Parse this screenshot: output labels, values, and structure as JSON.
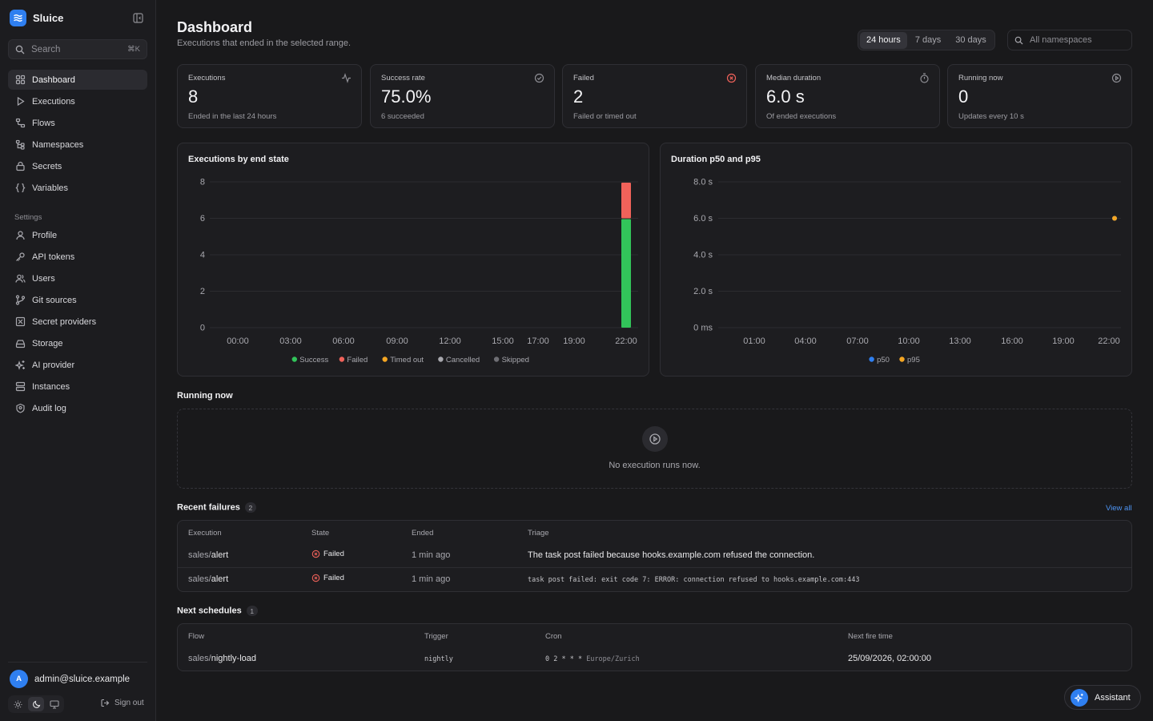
{
  "app": {
    "name": "Sluice"
  },
  "search": {
    "placeholder": "Search",
    "shortcut": "⌘K"
  },
  "nav": [
    {
      "label": "Dashboard",
      "icon": "grid-icon",
      "active": true
    },
    {
      "label": "Executions",
      "icon": "play-icon"
    },
    {
      "label": "Flows",
      "icon": "flow-icon"
    },
    {
      "label": "Namespaces",
      "icon": "tree-icon"
    },
    {
      "label": "Secrets",
      "icon": "lock-icon"
    },
    {
      "label": "Variables",
      "icon": "braces-icon"
    }
  ],
  "settings": {
    "heading": "Settings",
    "items": [
      {
        "label": "Profile",
        "icon": "user-icon"
      },
      {
        "label": "API tokens",
        "icon": "key-icon"
      },
      {
        "label": "Users",
        "icon": "users-icon"
      },
      {
        "label": "Git sources",
        "icon": "git-icon"
      },
      {
        "label": "Secret providers",
        "icon": "vault-icon"
      },
      {
        "label": "Storage",
        "icon": "drive-icon"
      },
      {
        "label": "AI provider",
        "icon": "sparkles-icon"
      },
      {
        "label": "Instances",
        "icon": "server-icon"
      },
      {
        "label": "Audit log",
        "icon": "audit-icon"
      }
    ]
  },
  "user": {
    "initial": "A",
    "email": "admin@sluice.example",
    "sign_out": "Sign out"
  },
  "header": {
    "title": "Dashboard",
    "subtitle": "Executions that ended in the selected range."
  },
  "ranges": [
    {
      "label": "24 hours",
      "active": true
    },
    {
      "label": "7 days"
    },
    {
      "label": "30 days"
    }
  ],
  "namespace_filter": {
    "placeholder": "All namespaces"
  },
  "stats": [
    {
      "label": "Executions",
      "value": "8",
      "sub": "Ended in the last 24 hours",
      "icon": "activity-icon",
      "color": "#8e8e94"
    },
    {
      "label": "Success rate",
      "value": "75.0%",
      "sub": "6 succeeded",
      "icon": "check-circle-icon",
      "color": "#8e8e94"
    },
    {
      "label": "Failed",
      "value": "2",
      "sub": "Failed or timed out",
      "icon": "x-circle-icon",
      "color": "#f0625a"
    },
    {
      "label": "Median duration",
      "value": "6.0 s",
      "sub": "Of ended executions",
      "icon": "timer-icon",
      "color": "#8e8e94"
    },
    {
      "label": "Running now",
      "value": "0",
      "sub": "Updates every 10 s",
      "icon": "play-circle-icon",
      "color": "#8e8e94"
    }
  ],
  "chart_data": [
    {
      "type": "bar",
      "title": "Executions by end state",
      "x_ticks": [
        "00:00",
        "03:00",
        "06:00",
        "09:00",
        "12:00",
        "15:00",
        "17:00",
        "19:00",
        "22:00"
      ],
      "y_ticks": [
        "0",
        "2",
        "4",
        "6",
        "8"
      ],
      "ylim": [
        0,
        8
      ],
      "stacked": true,
      "series": [
        {
          "name": "Success",
          "color": "#32c45a",
          "points": [
            {
              "x": "22:00",
              "y": 6
            }
          ]
        },
        {
          "name": "Failed",
          "color": "#f0625a",
          "points": [
            {
              "x": "22:00",
              "y": 2
            }
          ]
        },
        {
          "name": "Timed out",
          "color": "#f5a623",
          "points": []
        },
        {
          "name": "Cancelled",
          "color": "#a8a8ae",
          "points": []
        },
        {
          "name": "Skipped",
          "color": "#6e6e74",
          "points": []
        }
      ],
      "grid": true,
      "legend": "bottom"
    },
    {
      "type": "line",
      "title": "Duration p50 and p95",
      "x_ticks": [
        "01:00",
        "04:00",
        "07:00",
        "10:00",
        "13:00",
        "16:00",
        "19:00",
        "22:00"
      ],
      "y_ticks": [
        "0 ms",
        "2.0 s",
        "4.0 s",
        "6.0 s",
        "8.0 s"
      ],
      "ylim": [
        0,
        8
      ],
      "series": [
        {
          "name": "p50",
          "color": "#2f7ff0",
          "points": [
            {
              "x": "22:00",
              "y": 6.0
            }
          ]
        },
        {
          "name": "p95",
          "color": "#f5a623",
          "points": [
            {
              "x": "22:00",
              "y": 6.0
            }
          ]
        }
      ],
      "grid": true,
      "legend": "bottom"
    }
  ],
  "running": {
    "title": "Running now",
    "empty": "No execution runs now."
  },
  "failures": {
    "title": "Recent failures",
    "count": "2",
    "view_all": "View all",
    "columns": [
      "Execution",
      "State",
      "Ended",
      "Triage"
    ],
    "rows": [
      {
        "namespace": "sales/",
        "flow": "alert",
        "state": "Failed",
        "ended": "1 min ago",
        "triage": "The task post failed because hooks.example.com refused the connection.",
        "mono": false
      },
      {
        "namespace": "sales/",
        "flow": "alert",
        "state": "Failed",
        "ended": "1 min ago",
        "triage": "task post failed: exit code 7: ERROR: connection refused to hooks.example.com:443",
        "mono": true
      }
    ]
  },
  "schedules": {
    "title": "Next schedules",
    "count": "1",
    "columns": [
      "Flow",
      "Trigger",
      "Cron",
      "Next fire time"
    ],
    "rows": [
      {
        "namespace": "sales/",
        "flow": "nightly-load",
        "trigger": "nightly",
        "cron": "0 2 * * *",
        "tz": "Europe/Zurich",
        "next": "25/09/2026, 02:00:00"
      }
    ]
  },
  "assistant": {
    "label": "Assistant"
  }
}
